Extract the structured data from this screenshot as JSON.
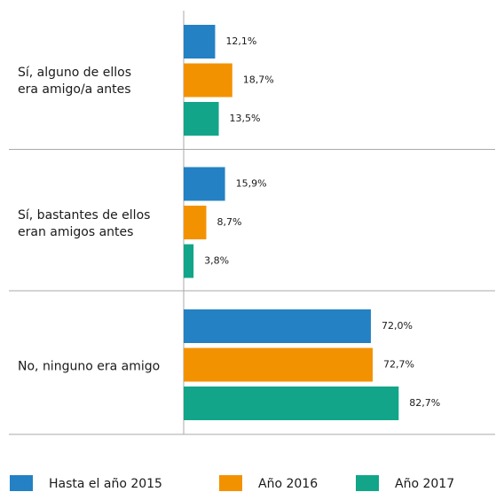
{
  "chart_data": {
    "type": "barh",
    "categories": [
      "Sí, alguno de ellos\nera amigo/a antes",
      "Sí, bastantes de ellos\neran amigos antes",
      "No, ninguno era amigo"
    ],
    "series": [
      {
        "name": "Hasta el año 2015",
        "color": "#2481c3",
        "values": [
          12.1,
          15.9,
          72.0
        ],
        "value_labels": [
          "12,1%",
          "15,9%",
          "72,0%"
        ]
      },
      {
        "name": "Año 2016",
        "color": "#f39200",
        "values": [
          18.7,
          8.7,
          72.7
        ],
        "value_labels": [
          "18,7%",
          "8,7%",
          "72,7%"
        ]
      },
      {
        "name": "Año 2017",
        "color": "#12a589",
        "values": [
          13.5,
          3.8,
          82.7
        ],
        "value_labels": [
          "13,5%",
          "3,8%",
          "82,7%"
        ]
      }
    ],
    "xlim": [
      0,
      100
    ]
  }
}
